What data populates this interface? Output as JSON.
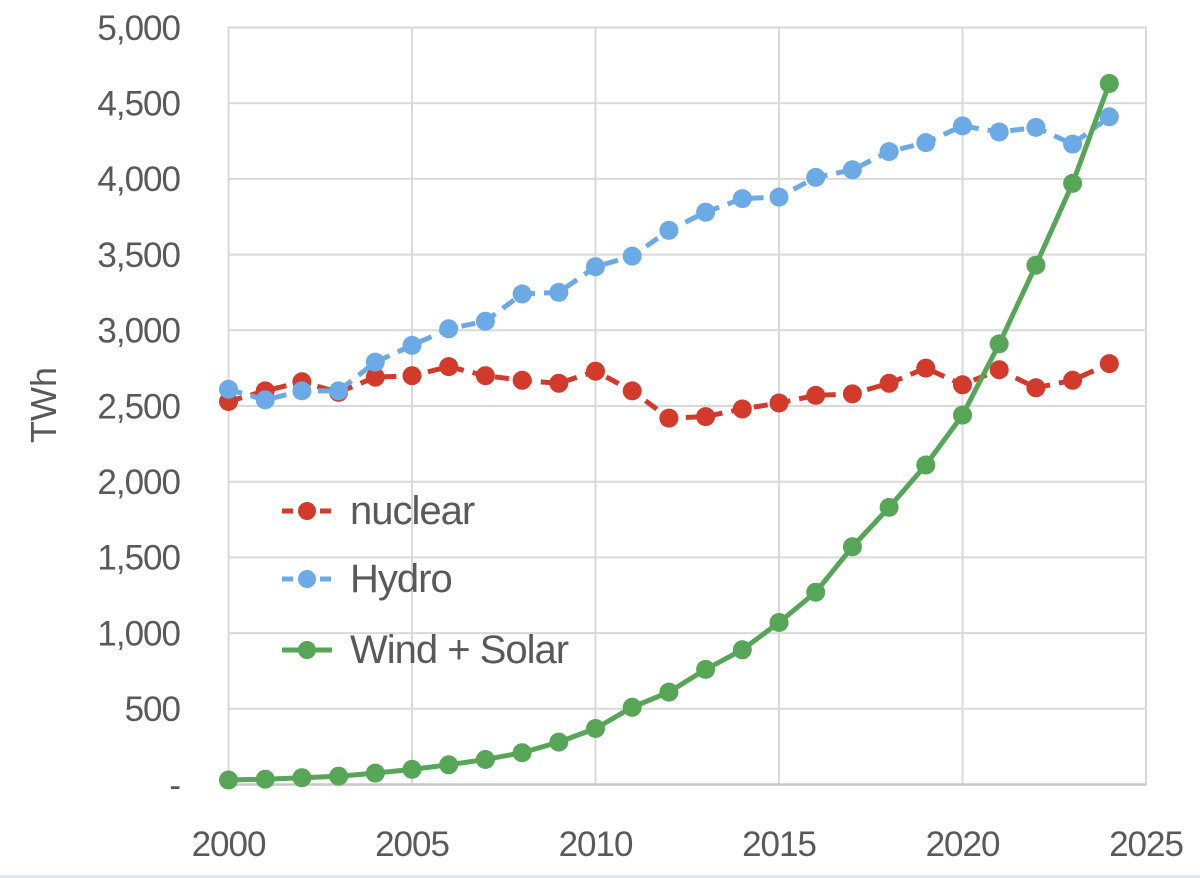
{
  "chart_data": {
    "type": "line",
    "title": "",
    "ylabel": "TWh",
    "xlabel": "",
    "xlim": [
      2000,
      2025
    ],
    "ylim": [
      0,
      5000
    ],
    "grid": true,
    "legend_position": "inside-left-middle",
    "xticks": [
      2000,
      2005,
      2010,
      2015,
      2020,
      2025
    ],
    "yticks": [
      {
        "value": 0,
        "label": "-"
      },
      {
        "value": 500,
        "label": "500"
      },
      {
        "value": 1000,
        "label": "1,000"
      },
      {
        "value": 1500,
        "label": "1,500"
      },
      {
        "value": 2000,
        "label": "2,000"
      },
      {
        "value": 2500,
        "label": "2,500"
      },
      {
        "value": 3000,
        "label": "3,000"
      },
      {
        "value": 3500,
        "label": "3,500"
      },
      {
        "value": 4000,
        "label": "4,000"
      },
      {
        "value": 4500,
        "label": "4,500"
      },
      {
        "value": 5000,
        "label": "5,000"
      }
    ],
    "x": [
      2000,
      2001,
      2002,
      2003,
      2004,
      2005,
      2006,
      2007,
      2008,
      2009,
      2010,
      2011,
      2012,
      2013,
      2014,
      2015,
      2016,
      2017,
      2018,
      2019,
      2020,
      2021,
      2022,
      2023,
      2024
    ],
    "series": [
      {
        "name": "nuclear",
        "color": "#D23A2B",
        "line_style": "dashed",
        "marker": "circle",
        "values": [
          2530,
          2600,
          2660,
          2590,
          2690,
          2700,
          2760,
          2700,
          2670,
          2650,
          2730,
          2600,
          2420,
          2430,
          2480,
          2520,
          2570,
          2580,
          2650,
          2750,
          2640,
          2740,
          2620,
          2670,
          2780
        ]
      },
      {
        "name": "Hydro",
        "color": "#6BAAE4",
        "line_style": "dashed",
        "marker": "circle",
        "values": [
          2610,
          2540,
          2600,
          2600,
          2790,
          2900,
          3010,
          3060,
          3240,
          3250,
          3420,
          3490,
          3660,
          3780,
          3870,
          3880,
          4010,
          4060,
          4180,
          4240,
          4350,
          4310,
          4340,
          4230,
          4410
        ]
      },
      {
        "name": "Wind + Solar",
        "color": "#57A657",
        "line_style": "solid",
        "marker": "circle",
        "values": [
          30,
          35,
          45,
          55,
          75,
          100,
          130,
          165,
          210,
          280,
          370,
          510,
          610,
          760,
          890,
          1070,
          1270,
          1570,
          1830,
          2110,
          2440,
          2910,
          3430,
          3970,
          4630
        ]
      }
    ]
  },
  "colors": {
    "background": "#ffffff",
    "gridline": "#d9d9d9",
    "axis_line": "#c7c7c7",
    "axis_text": "#595959"
  }
}
